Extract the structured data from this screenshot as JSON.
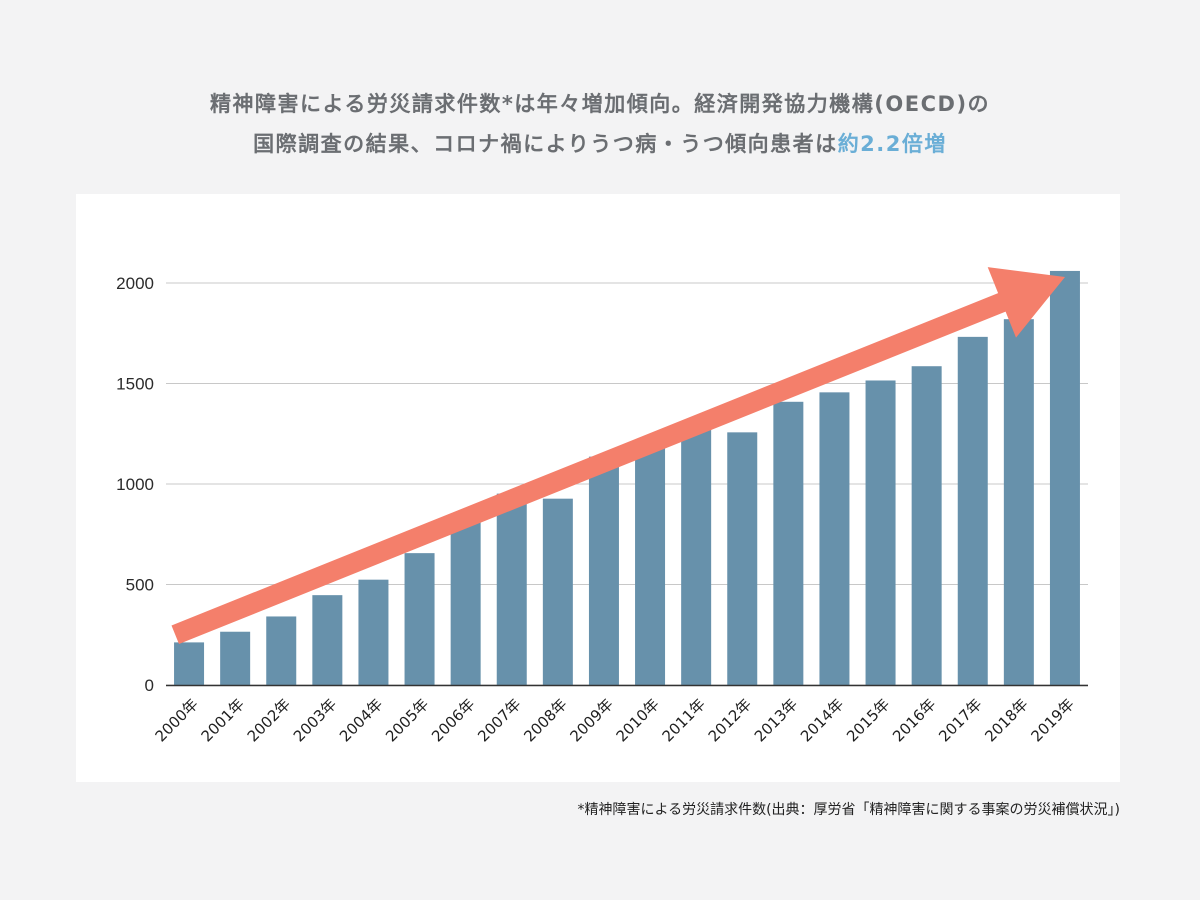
{
  "title": {
    "line1": "精神障害による労災請求件数*は年々増加傾向。経済開発協力機構(OECD)の",
    "line2_prefix": "国際調査の結果、コロナ禍によりうつ病・うつ傾向患者は",
    "line2_highlight": "約2.2倍増"
  },
  "source_note": "*精神障害による労災請求件数(出典：厚労省「精神障害に関する事案の労災補償状況」)",
  "colors": {
    "bar": "#6791ab",
    "arrow": "#f47f6b",
    "highlight": "#6aaed6",
    "grid": "#c8c8c8"
  },
  "chart_data": {
    "type": "bar",
    "categories": [
      "2000年",
      "2001年",
      "2002年",
      "2003年",
      "2004年",
      "2005年",
      "2006年",
      "2007年",
      "2008年",
      "2009年",
      "2010年",
      "2011年",
      "2012年",
      "2013年",
      "2014年",
      "2015年",
      "2016年",
      "2017年",
      "2018年",
      "2019年"
    ],
    "values": [
      212,
      265,
      341,
      447,
      524,
      656,
      819,
      952,
      927,
      1136,
      1181,
      1272,
      1257,
      1409,
      1456,
      1515,
      1586,
      1732,
      1820,
      2060
    ],
    "ylim": [
      0,
      2000
    ],
    "yticks": [
      "0",
      "500",
      "1000",
      "1500",
      "2000"
    ],
    "grid": true,
    "trend_arrow": {
      "from": [
        -0.3,
        250
      ],
      "to": [
        19.0,
        2030
      ]
    }
  }
}
